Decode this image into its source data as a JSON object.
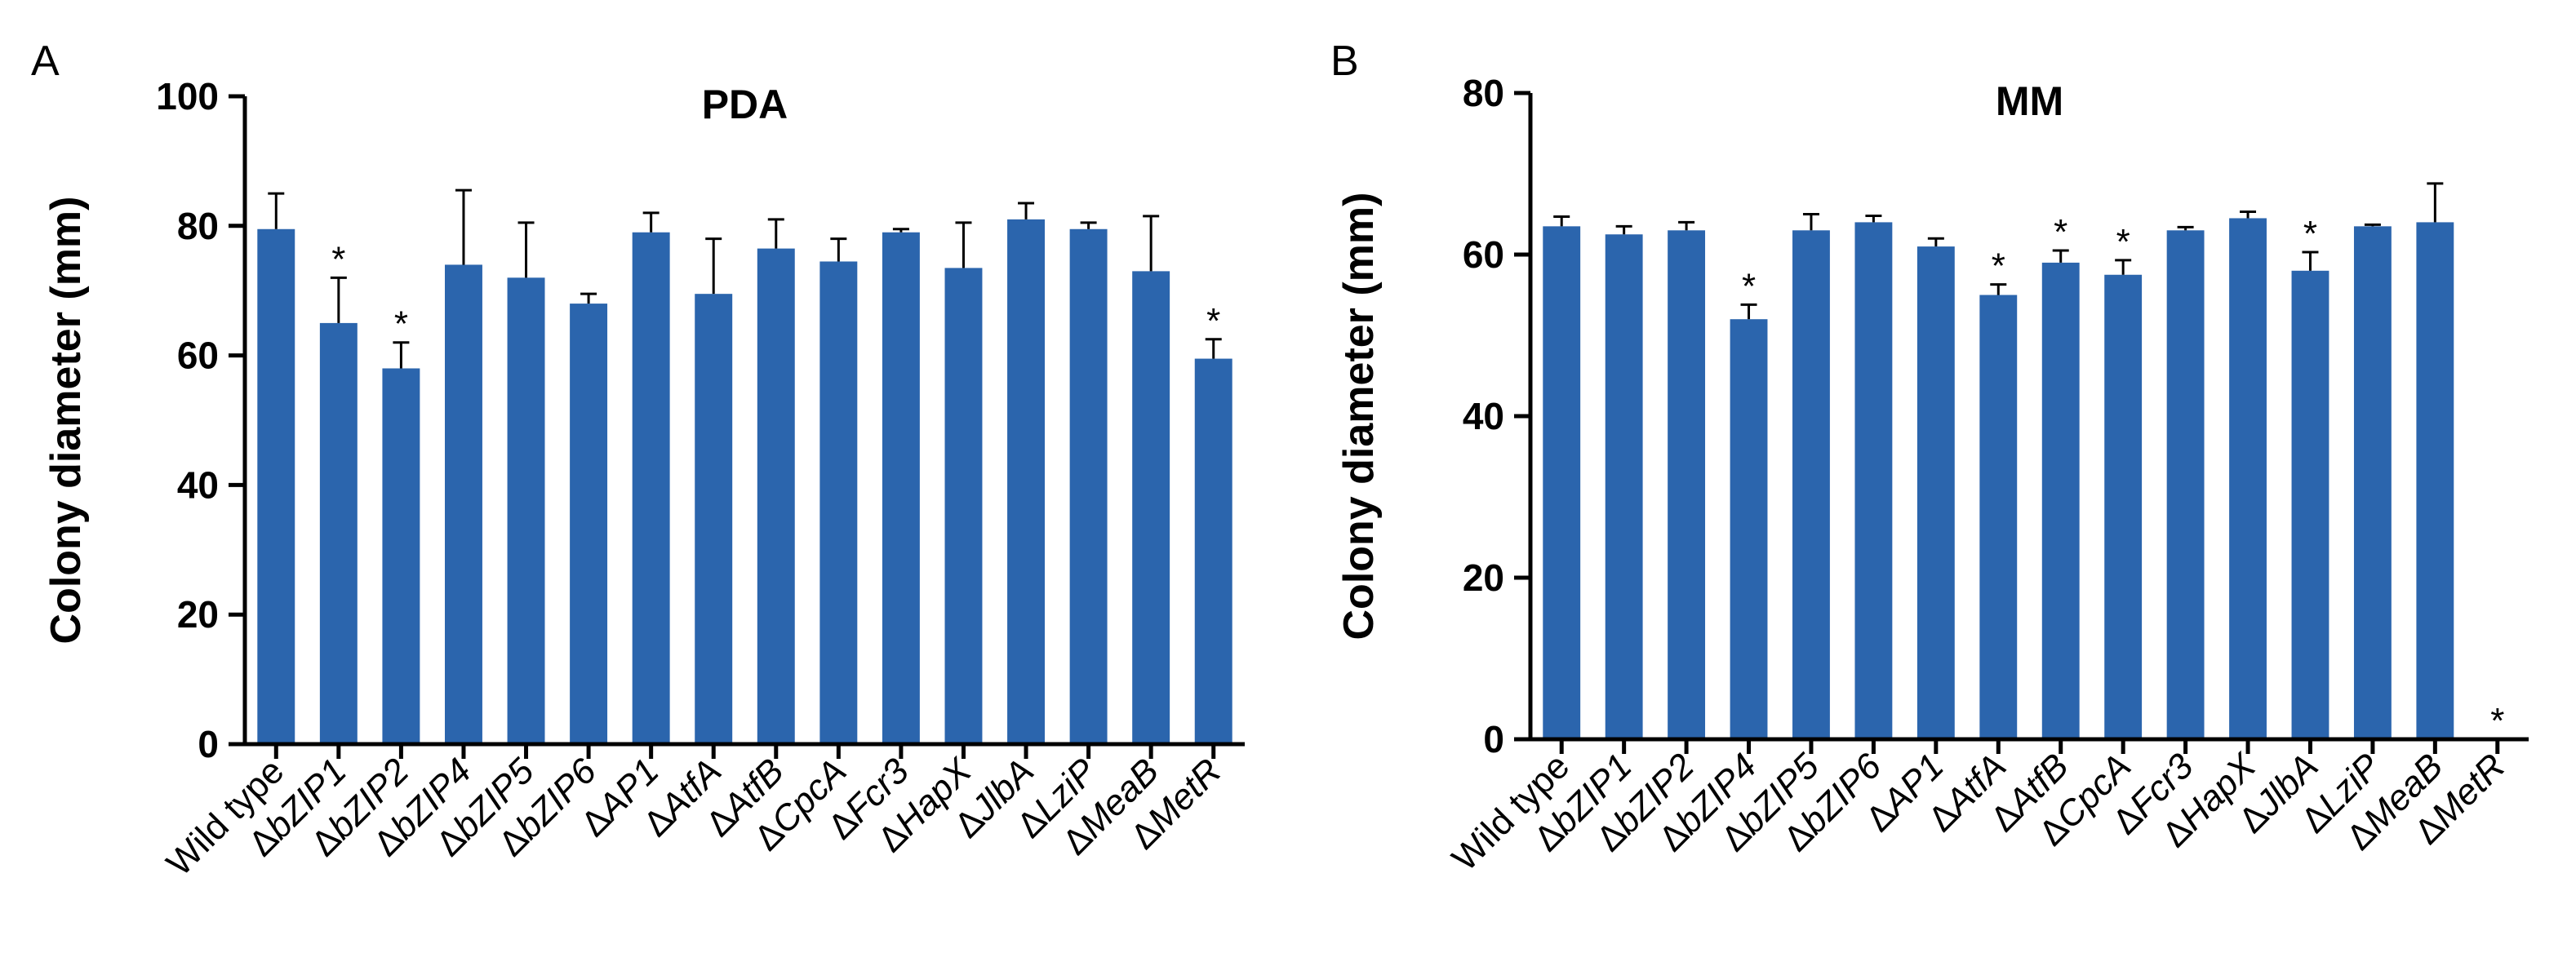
{
  "chart_data": [
    {
      "panel": "A",
      "type": "bar",
      "title": "PDA",
      "ylabel": "Colony diameter (mm)",
      "xlabel": "",
      "ylim": [
        0,
        100
      ],
      "yticks": [
        0,
        20,
        40,
        60,
        80,
        100
      ],
      "categories": [
        {
          "prefix": "",
          "name": "Wild type"
        },
        {
          "prefix": "Δ",
          "name": "bZIP1"
        },
        {
          "prefix": "Δ",
          "name": "bZIP2"
        },
        {
          "prefix": "Δ",
          "name": "bZIP4"
        },
        {
          "prefix": "Δ",
          "name": "bZIP5"
        },
        {
          "prefix": "Δ",
          "name": "bZIP6"
        },
        {
          "prefix": "Δ",
          "name": "AP1"
        },
        {
          "prefix": "Δ",
          "name": "AtfA"
        },
        {
          "prefix": "Δ",
          "name": "AtfB"
        },
        {
          "prefix": "Δ",
          "name": "CpcA"
        },
        {
          "prefix": "Δ",
          "name": "Fcr3"
        },
        {
          "prefix": "Δ",
          "name": "HapX"
        },
        {
          "prefix": "Δ",
          "name": "JlbA"
        },
        {
          "prefix": "Δ",
          "name": "LziP"
        },
        {
          "prefix": "Δ",
          "name": "MeaB"
        },
        {
          "prefix": "Δ",
          "name": "MetR"
        }
      ],
      "values": [
        79.5,
        65.0,
        58.0,
        74.0,
        72.0,
        68.0,
        79.0,
        69.5,
        76.5,
        74.5,
        79.0,
        73.5,
        81.0,
        79.5,
        73.0,
        59.5
      ],
      "errors": [
        5.5,
        7.0,
        4.0,
        11.5,
        8.5,
        1.5,
        3.0,
        8.5,
        4.5,
        3.5,
        0.5,
        7.0,
        2.5,
        1.0,
        8.5,
        3.0
      ],
      "significant": [
        false,
        true,
        true,
        false,
        false,
        false,
        false,
        false,
        false,
        false,
        false,
        false,
        false,
        false,
        false,
        true
      ],
      "significance_marker": "*",
      "bar_color": "#2b65ad"
    },
    {
      "panel": "B",
      "type": "bar",
      "title": "MM",
      "ylabel": "Colony diameter (mm)",
      "xlabel": "",
      "ylim": [
        0,
        80
      ],
      "yticks": [
        0,
        20,
        40,
        60,
        80
      ],
      "categories": [
        {
          "prefix": "",
          "name": "Wild type"
        },
        {
          "prefix": "Δ",
          "name": "bZIP1"
        },
        {
          "prefix": "Δ",
          "name": "bZIP2"
        },
        {
          "prefix": "Δ",
          "name": "bZIP4"
        },
        {
          "prefix": "Δ",
          "name": "bZIP5"
        },
        {
          "prefix": "Δ",
          "name": "bZIP6"
        },
        {
          "prefix": "Δ",
          "name": "AP1"
        },
        {
          "prefix": "Δ",
          "name": "AtfA"
        },
        {
          "prefix": "Δ",
          "name": "AtfB"
        },
        {
          "prefix": "Δ",
          "name": "CpcA"
        },
        {
          "prefix": "Δ",
          "name": "Fcr3"
        },
        {
          "prefix": "Δ",
          "name": "HapX"
        },
        {
          "prefix": "Δ",
          "name": "JlbA"
        },
        {
          "prefix": "Δ",
          "name": "LziP"
        },
        {
          "prefix": "Δ",
          "name": "MeaB"
        },
        {
          "prefix": "Δ",
          "name": "MetR"
        }
      ],
      "values": [
        63.5,
        62.5,
        63.0,
        52.0,
        63.0,
        64.0,
        61.0,
        55.0,
        59.0,
        57.5,
        63.0,
        64.5,
        58.0,
        63.5,
        64.0,
        0
      ],
      "errors": [
        1.2,
        1.0,
        1.0,
        1.8,
        2.0,
        0.8,
        1.0,
        1.3,
        1.5,
        1.8,
        0.4,
        0.8,
        2.3,
        0.2,
        4.8,
        0
      ],
      "significant": [
        false,
        false,
        false,
        true,
        false,
        false,
        false,
        true,
        true,
        true,
        false,
        false,
        true,
        false,
        false,
        true
      ],
      "significance_marker": "*",
      "bar_color": "#2b65ad"
    }
  ]
}
